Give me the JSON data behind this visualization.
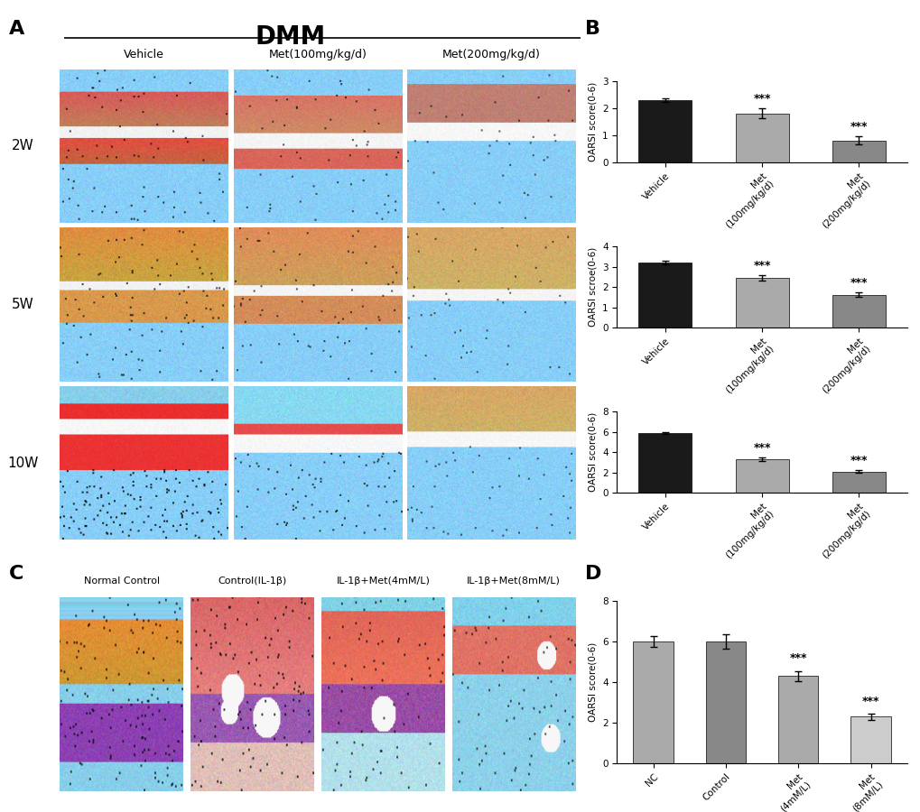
{
  "title_dmm": "DMM",
  "panel_A_label": "A",
  "panel_B_label": "B",
  "panel_C_label": "C",
  "panel_D_label": "D",
  "col_labels": [
    "Vehicle",
    "Met(100mg/kg/d)",
    "Met(200mg/kg/d)"
  ],
  "row_labels": [
    "2W",
    "5W",
    "10W"
  ],
  "explant_labels": [
    "Normal Control",
    "Control(IL-1β)",
    "IL-1β+Met(4mM/L)",
    "IL-1β+Met(8mM/L)"
  ],
  "bar_chart_2W": {
    "categories": [
      "Vehicle",
      "Met\n(100mg/kg/d)",
      "Met\n(200mg/kg/d)"
    ],
    "values": [
      2.3,
      1.82,
      0.82
    ],
    "errors": [
      0.08,
      0.18,
      0.15
    ],
    "ylabel": "OARSI score(0-6)",
    "ylim": [
      0,
      3
    ],
    "yticks": [
      0,
      1,
      2,
      3
    ],
    "sig": [
      "",
      "***",
      "***"
    ],
    "colors": [
      "#1a1a1a",
      "#aaaaaa",
      "#888888"
    ]
  },
  "bar_chart_5W": {
    "categories": [
      "Vehicle",
      "Met\n(100mg/kg/d)",
      "Met\n(200mg/kg/d)"
    ],
    "values": [
      3.2,
      2.45,
      1.62
    ],
    "errors": [
      0.09,
      0.15,
      0.12
    ],
    "ylabel": "OARSI scroe(0-6)",
    "ylim": [
      0,
      4
    ],
    "yticks": [
      0,
      1,
      2,
      3,
      4
    ],
    "sig": [
      "",
      "***",
      "***"
    ],
    "colors": [
      "#1a1a1a",
      "#aaaaaa",
      "#888888"
    ]
  },
  "bar_chart_10W": {
    "categories": [
      "Vehicle",
      "Met\n(100mg/kg/d)",
      "Met\n(200mg/kg/d)"
    ],
    "values": [
      5.9,
      3.3,
      2.1
    ],
    "errors": [
      0.1,
      0.18,
      0.15
    ],
    "ylabel": "OARSI score(0-6)",
    "ylim": [
      0,
      8
    ],
    "yticks": [
      0,
      2,
      4,
      6,
      8
    ],
    "sig": [
      "",
      "***",
      "***"
    ],
    "colors": [
      "#1a1a1a",
      "#aaaaaa",
      "#888888"
    ]
  },
  "bar_chart_D": {
    "categories": [
      "NC",
      "Control",
      "Met\n(4mM/L)",
      "Met\n(8mM/L)"
    ],
    "values": [
      6.0,
      6.0,
      4.3,
      2.3
    ],
    "errors": [
      0.25,
      0.35,
      0.25,
      0.15
    ],
    "ylabel": "OARSI score(0-6)",
    "ylim": [
      0,
      8
    ],
    "yticks": [
      0,
      2,
      4,
      6,
      8
    ],
    "sig": [
      "",
      "",
      "***",
      "***"
    ],
    "colors": [
      "#aaaaaa",
      "#888888",
      "#aaaaaa",
      "#cccccc"
    ]
  },
  "background_color": "#ffffff"
}
